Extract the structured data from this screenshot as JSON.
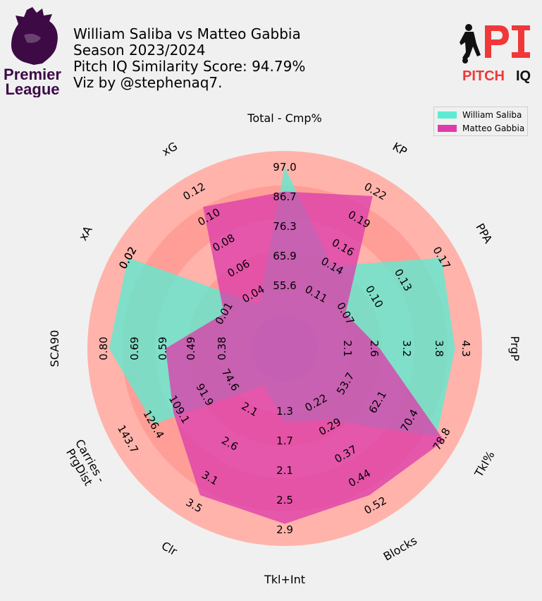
{
  "header": {
    "title_lines": [
      "William Saliba vs Matteo Gabbia",
      "Season 2023/2024",
      "Pitch IQ Similarity Score: 94.79%",
      "Viz by @stephenaq7."
    ],
    "league_logo_text": [
      "Premier",
      "League"
    ],
    "brand_logo_text": [
      "PITCH",
      "IQ"
    ]
  },
  "legend": {
    "entries": [
      "William Saliba",
      "Matteo Gabbia"
    ]
  },
  "colors": {
    "background": "#f0f0f0",
    "ring_light": "#ffb3ab",
    "ring_dark": "#ff9e96",
    "center": "#b98bc7",
    "saliba": "#5cecd1",
    "gabbia": "#dd3daa",
    "league_purple": "#3d0a46",
    "brand_red": "#f03838"
  },
  "chart_data": {
    "type": "radar",
    "params": [
      "Total - Cmp%",
      "KP",
      "PPA",
      "PrgP",
      "TkI%",
      "Blocks",
      "Tkl+Int",
      "Clr",
      "Carries -\nPrgDist",
      "SCA90",
      "xA",
      "xG"
    ],
    "ring_labels": [
      [
        "55.6",
        "65.9",
        "76.3",
        "86.7",
        "97.0"
      ],
      [
        "0.11",
        "0.14",
        "0.16",
        "0.19",
        "0.22"
      ],
      [
        "0.07",
        "0.10",
        "0.13",
        "0.17"
      ],
      [
        "2.1",
        "2.6",
        "3.2",
        "3.8",
        "4.3"
      ],
      [
        "53.7",
        "62.1",
        "70.4",
        "78.8"
      ],
      [
        "0.22",
        "0.29",
        "0.37",
        "0.44",
        "0.52"
      ],
      [
        "1.3",
        "1.7",
        "2.1",
        "2.5",
        "2.9"
      ],
      [
        "2.1",
        "2.6",
        "3.1",
        "3.5"
      ],
      [
        "74.6",
        "91.9",
        "109.1",
        "126.4",
        "143.7"
      ],
      [
        "0.38",
        "0.49",
        "0.59",
        "0.69",
        "0.80"
      ],
      [
        "0.01",
        "0.02",
        "0.02",
        "0.02"
      ],
      [
        "0.04",
        "0.06",
        "0.08",
        "0.10",
        "0.12"
      ]
    ],
    "series": [
      {
        "name": "William Saliba",
        "values": [
          97.0,
          0.14,
          0.17,
          4.1,
          77.5,
          0.27,
          1.45,
          1.75,
          126.4,
          0.78,
          0.02,
          0.032
        ]
      },
      {
        "name": "Matteo Gabbia",
        "values": [
          88.5,
          0.215,
          0.07,
          2.7,
          79.5,
          0.49,
          2.82,
          3.35,
          113.0,
          0.58,
          0.01,
          0.108
        ]
      }
    ]
  }
}
